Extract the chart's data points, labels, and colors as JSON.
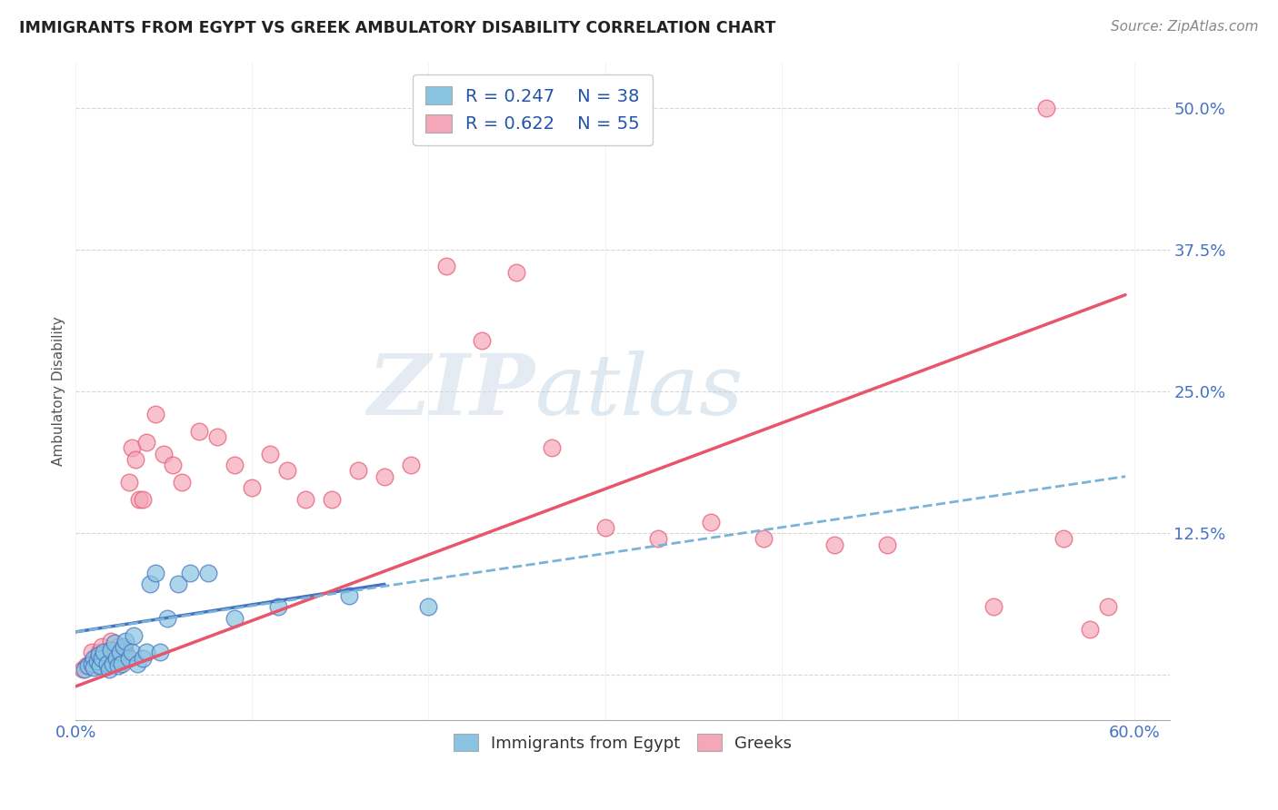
{
  "title": "IMMIGRANTS FROM EGYPT VS GREEK AMBULATORY DISABILITY CORRELATION CHART",
  "source": "Source: ZipAtlas.com",
  "ylabel": "Ambulatory Disability",
  "xlim": [
    0.0,
    0.62
  ],
  "ylim": [
    -0.04,
    0.54
  ],
  "xticks": [
    0.0,
    0.1,
    0.2,
    0.3,
    0.4,
    0.5,
    0.6
  ],
  "xticklabels": [
    "0.0%",
    "",
    "",
    "",
    "",
    "",
    "60.0%"
  ],
  "ytick_positions": [
    0.0,
    0.125,
    0.25,
    0.375,
    0.5
  ],
  "yticklabels": [
    "",
    "12.5%",
    "25.0%",
    "37.5%",
    "50.0%"
  ],
  "legend_r1": "R = 0.247",
  "legend_n1": "N = 38",
  "legend_r2": "R = 0.622",
  "legend_n2": "N = 55",
  "color_blue": "#89c4e1",
  "color_pink": "#f4a7b9",
  "color_blue_line": "#4472c4",
  "color_pink_line": "#e8566e",
  "color_dashed": "#7ab3d8",
  "watermark_zip": "ZIP",
  "watermark_atlas": "atlas",
  "blue_scatter_x": [
    0.005,
    0.007,
    0.009,
    0.01,
    0.01,
    0.012,
    0.013,
    0.014,
    0.015,
    0.016,
    0.018,
    0.019,
    0.02,
    0.021,
    0.022,
    0.023,
    0.024,
    0.025,
    0.026,
    0.027,
    0.028,
    0.03,
    0.032,
    0.033,
    0.035,
    0.038,
    0.04,
    0.042,
    0.045,
    0.048,
    0.052,
    0.058,
    0.065,
    0.075,
    0.09,
    0.115,
    0.155,
    0.2
  ],
  "blue_scatter_y": [
    0.005,
    0.008,
    0.01,
    0.015,
    0.007,
    0.012,
    0.018,
    0.008,
    0.015,
    0.02,
    0.01,
    0.005,
    0.022,
    0.01,
    0.028,
    0.015,
    0.008,
    0.02,
    0.01,
    0.025,
    0.03,
    0.015,
    0.02,
    0.035,
    0.01,
    0.015,
    0.02,
    0.08,
    0.09,
    0.02,
    0.05,
    0.08,
    0.09,
    0.09,
    0.05,
    0.06,
    0.07,
    0.06
  ],
  "pink_scatter_x": [
    0.004,
    0.006,
    0.008,
    0.009,
    0.01,
    0.011,
    0.012,
    0.013,
    0.014,
    0.015,
    0.016,
    0.018,
    0.019,
    0.02,
    0.022,
    0.024,
    0.025,
    0.027,
    0.028,
    0.03,
    0.032,
    0.034,
    0.036,
    0.038,
    0.04,
    0.045,
    0.05,
    0.055,
    0.06,
    0.07,
    0.08,
    0.09,
    0.1,
    0.11,
    0.12,
    0.13,
    0.145,
    0.16,
    0.175,
    0.19,
    0.21,
    0.23,
    0.25,
    0.27,
    0.3,
    0.33,
    0.36,
    0.39,
    0.43,
    0.46,
    0.52,
    0.55,
    0.56,
    0.575,
    0.585
  ],
  "pink_scatter_y": [
    0.005,
    0.008,
    0.01,
    0.02,
    0.01,
    0.015,
    0.008,
    0.02,
    0.012,
    0.025,
    0.018,
    0.015,
    0.022,
    0.03,
    0.02,
    0.025,
    0.015,
    0.022,
    0.02,
    0.17,
    0.2,
    0.19,
    0.155,
    0.155,
    0.205,
    0.23,
    0.195,
    0.185,
    0.17,
    0.215,
    0.21,
    0.185,
    0.165,
    0.195,
    0.18,
    0.155,
    0.155,
    0.18,
    0.175,
    0.185,
    0.36,
    0.295,
    0.355,
    0.2,
    0.13,
    0.12,
    0.135,
    0.12,
    0.115,
    0.115,
    0.06,
    0.5,
    0.12,
    0.04,
    0.06
  ],
  "blue_line_x": [
    0.0,
    0.175
  ],
  "blue_line_y": [
    0.038,
    0.08
  ],
  "pink_line_x": [
    0.0,
    0.595
  ],
  "pink_line_y": [
    -0.01,
    0.335
  ],
  "dashed_line_x": [
    0.0,
    0.595
  ],
  "dashed_line_y": [
    0.038,
    0.175
  ]
}
